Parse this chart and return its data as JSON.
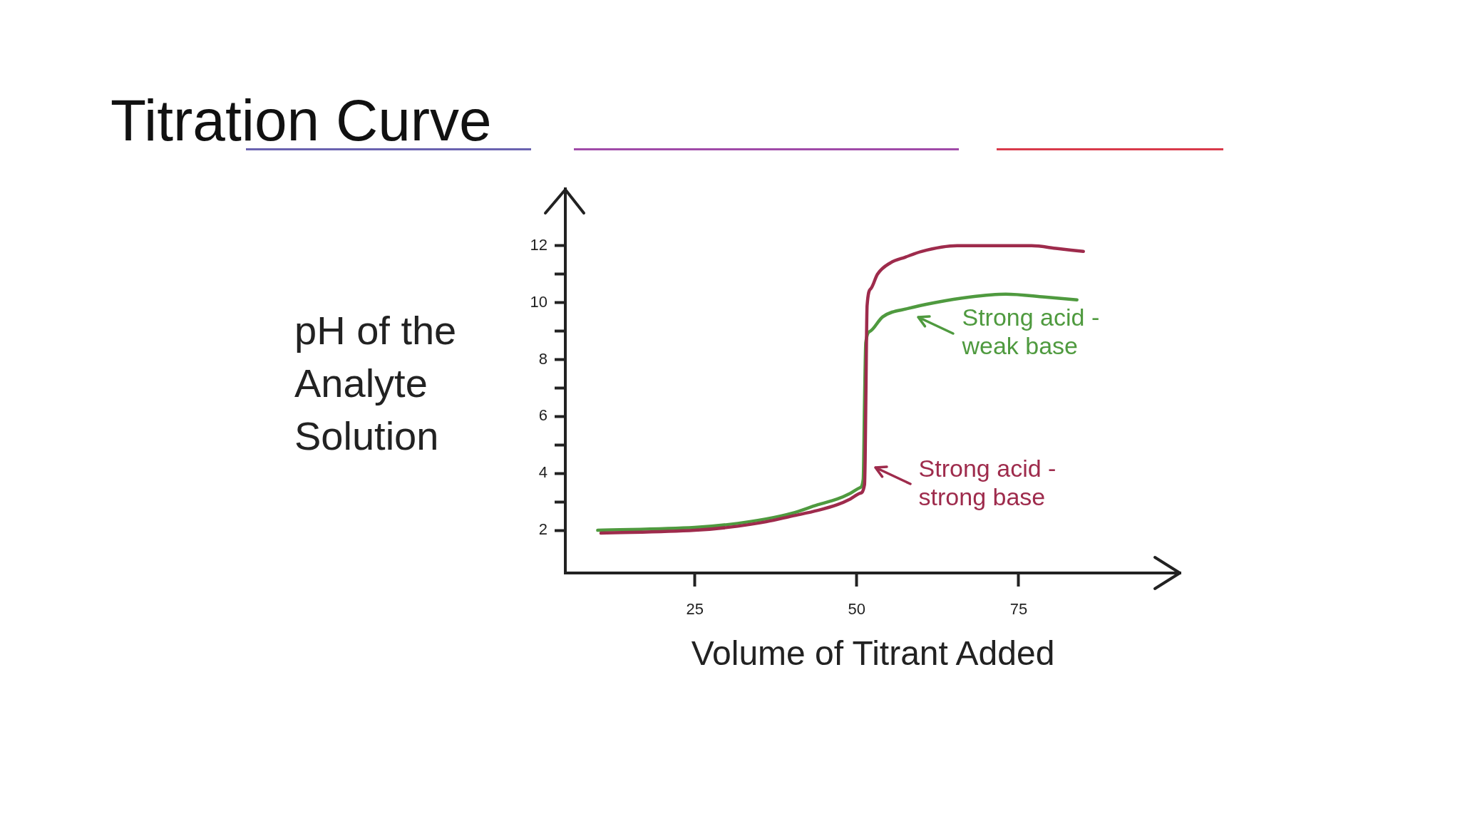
{
  "chart_data": {
    "type": "line",
    "title": "Titration Curve",
    "xlabel": "Volume of Titrant Added",
    "ylabel": "pH of the Analyte Solution",
    "xlim": [
      5,
      100
    ],
    "ylim": [
      0.5,
      14
    ],
    "xticks": [
      25,
      50,
      75
    ],
    "yticks": [
      2,
      {
        "value": 3,
        "label": null
      },
      4,
      {
        "value": 5,
        "label": null
      },
      6,
      {
        "value": 7,
        "label": null
      },
      8,
      {
        "value": 9,
        "label": null
      },
      10,
      {
        "value": 11,
        "label": null
      },
      12
    ],
    "marker": "none",
    "line_style": "solid",
    "series": [
      {
        "color": "#9e2b4c",
        "x": [
          10.5,
          25,
          30,
          36,
          40,
          44,
          47,
          49,
          50.5,
          51.2,
          51.3,
          51.4,
          51.6,
          52.2,
          53.2,
          55.2,
          57.5,
          60,
          65.5,
          71,
          77,
          81,
          85
        ],
        "values": [
          1.9,
          2.0,
          2.1,
          2.3,
          2.5,
          2.7,
          2.9,
          3.1,
          3.3,
          3.6,
          4.5,
          6.5,
          9.9,
          10.5,
          11.0,
          11.4,
          11.6,
          11.8,
          12.0,
          12.0,
          12.0,
          11.9,
          11.8
        ]
      },
      {
        "color": "#4f9a3f",
        "x": [
          10,
          25,
          30,
          36,
          40,
          44,
          47,
          49,
          50.5,
          51.0,
          51.2,
          51.4,
          52.1,
          54,
          58,
          62,
          67.5,
          73,
          79,
          84
        ],
        "values": [
          2.0,
          2.1,
          2.2,
          2.4,
          2.6,
          2.9,
          3.1,
          3.3,
          3.5,
          3.8,
          6.5,
          8.6,
          9.0,
          9.5,
          9.8,
          10.0,
          10.2,
          10.3,
          10.2,
          10.1
        ]
      }
    ],
    "annotations": [
      {
        "text": "Strong acid - strong base",
        "x": 51.3,
        "y": 4.5
      },
      {
        "text": "Strong acid - weak base",
        "x": 58,
        "y": 9.8
      }
    ]
  }
}
